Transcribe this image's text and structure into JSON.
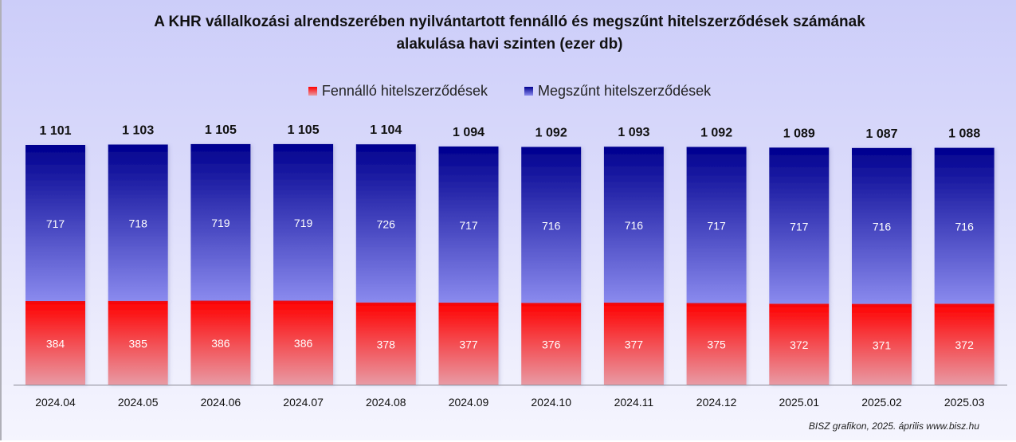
{
  "chart_data": {
    "type": "bar",
    "stacked": true,
    "title": "A KHR vállalkozási alrendszerében nyilvántartott fennálló és megszűnt hitelszerződések számának alakulása havi szinten (ezer db)",
    "title_lines": [
      "A KHR vállalkozási alrendszerében nyilvántartott fennálló és megszűnt hitelszerződések számának",
      "alakulása havi szinten (ezer db)"
    ],
    "xlabel": "",
    "ylabel": "",
    "unit": "ezer db",
    "categories": [
      "2024.04",
      "2024.05",
      "2024.06",
      "2024.07",
      "2024.08",
      "2024.09",
      "2024.10",
      "2024.11",
      "2024.12",
      "2025.01",
      "2025.02",
      "2025.03"
    ],
    "series": [
      {
        "name": "Fennálló hitelszerződések",
        "color_top": "#ff0000",
        "color_bottom": "#e89aa4",
        "values": [
          384,
          385,
          386,
          386,
          378,
          377,
          376,
          377,
          375,
          372,
          371,
          372
        ]
      },
      {
        "name": "Megszűnt hitelszerződések",
        "color_top": "#00008f",
        "color_bottom": "#8a8aee",
        "values": [
          717,
          718,
          719,
          719,
          726,
          717,
          716,
          716,
          717,
          717,
          716,
          716
        ]
      }
    ],
    "totals": [
      1101,
      1103,
      1105,
      1105,
      1104,
      1094,
      1092,
      1093,
      1092,
      1089,
      1087,
      1088
    ],
    "total_labels": [
      "1 101",
      "1 103",
      "1 105",
      "1 105",
      "1 104",
      "1 094",
      "1 092",
      "1 093",
      "1 092",
      "1 089",
      "1 087",
      "1 088"
    ],
    "legend_position": "top",
    "y_axis_visible": false,
    "grid": false,
    "ylim": [
      0,
      1105
    ]
  },
  "source_note": "BISZ grafikon, 2025. április www.bisz.hu"
}
